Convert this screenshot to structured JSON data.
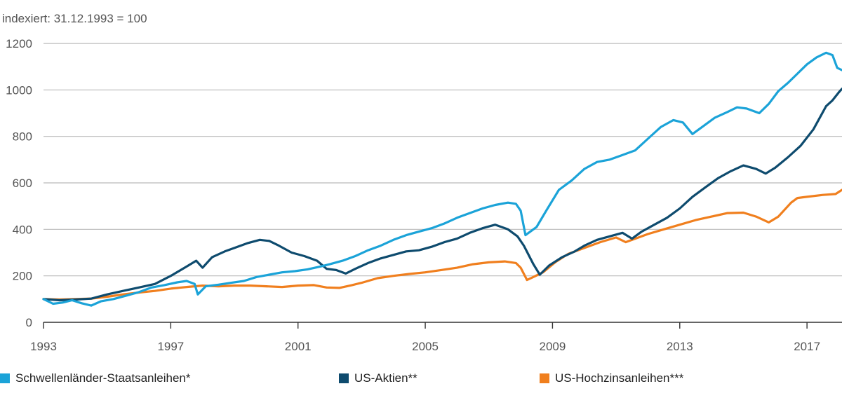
{
  "chart_data": {
    "type": "line",
    "subtitle": "indexiert: 31.12.1993 = 100",
    "xlim": [
      1993,
      2018.1
    ],
    "ylim": [
      0,
      1200
    ],
    "x_ticks": [
      "1993",
      "1997",
      "2001",
      "2005",
      "2009",
      "2013",
      "2017"
    ],
    "y_ticks": [
      "0",
      "200",
      "400",
      "600",
      "800",
      "1000",
      "1200"
    ],
    "grid": true,
    "legend_position": "bottom",
    "series": [
      {
        "name": "Schwellenländer-Staatsanleihen*",
        "color": "#1ba3d8",
        "points": [
          [
            1993.0,
            100
          ],
          [
            1993.3,
            80
          ],
          [
            1993.6,
            85
          ],
          [
            1993.9,
            95
          ],
          [
            1994.2,
            82
          ],
          [
            1994.5,
            72
          ],
          [
            1994.8,
            90
          ],
          [
            1995.2,
            100
          ],
          [
            1995.6,
            115
          ],
          [
            1996.0,
            130
          ],
          [
            1996.4,
            150
          ],
          [
            1996.8,
            160
          ],
          [
            1997.2,
            172
          ],
          [
            1997.5,
            178
          ],
          [
            1997.75,
            165
          ],
          [
            1997.85,
            120
          ],
          [
            1998.1,
            155
          ],
          [
            1998.5,
            162
          ],
          [
            1998.9,
            170
          ],
          [
            1999.3,
            178
          ],
          [
            1999.7,
            195
          ],
          [
            2000.1,
            205
          ],
          [
            2000.5,
            215
          ],
          [
            2000.9,
            220
          ],
          [
            2001.3,
            228
          ],
          [
            2001.7,
            240
          ],
          [
            2002.0,
            250
          ],
          [
            2002.4,
            265
          ],
          [
            2002.8,
            285
          ],
          [
            2003.2,
            310
          ],
          [
            2003.6,
            330
          ],
          [
            2004.0,
            355
          ],
          [
            2004.4,
            375
          ],
          [
            2004.8,
            390
          ],
          [
            2005.2,
            405
          ],
          [
            2005.6,
            425
          ],
          [
            2006.0,
            450
          ],
          [
            2006.4,
            470
          ],
          [
            2006.8,
            490
          ],
          [
            2007.2,
            505
          ],
          [
            2007.6,
            515
          ],
          [
            2007.85,
            510
          ],
          [
            2008.0,
            480
          ],
          [
            2008.15,
            375
          ],
          [
            2008.5,
            410
          ],
          [
            2008.8,
            480
          ],
          [
            2009.2,
            570
          ],
          [
            2009.6,
            610
          ],
          [
            2010.0,
            660
          ],
          [
            2010.4,
            690
          ],
          [
            2010.8,
            700
          ],
          [
            2011.2,
            720
          ],
          [
            2011.6,
            740
          ],
          [
            2012.0,
            790
          ],
          [
            2012.4,
            840
          ],
          [
            2012.8,
            870
          ],
          [
            2013.1,
            860
          ],
          [
            2013.4,
            810
          ],
          [
            2013.8,
            850
          ],
          [
            2014.1,
            880
          ],
          [
            2014.5,
            905
          ],
          [
            2014.8,
            925
          ],
          [
            2015.1,
            920
          ],
          [
            2015.5,
            900
          ],
          [
            2015.8,
            940
          ],
          [
            2016.1,
            995
          ],
          [
            2016.4,
            1030
          ],
          [
            2016.7,
            1070
          ],
          [
            2017.0,
            1110
          ],
          [
            2017.3,
            1140
          ],
          [
            2017.6,
            1160
          ],
          [
            2017.8,
            1150
          ],
          [
            2017.95,
            1095
          ],
          [
            2018.1,
            1085
          ]
        ]
      },
      {
        "name": "US-Aktien**",
        "color": "#0e4b6e",
        "points": [
          [
            1993.0,
            100
          ],
          [
            1993.5,
            95
          ],
          [
            1994.0,
            98
          ],
          [
            1994.5,
            102
          ],
          [
            1995.0,
            120
          ],
          [
            1995.5,
            135
          ],
          [
            1996.0,
            150
          ],
          [
            1996.5,
            165
          ],
          [
            1997.0,
            200
          ],
          [
            1997.5,
            240
          ],
          [
            1997.8,
            265
          ],
          [
            1998.0,
            235
          ],
          [
            1998.3,
            280
          ],
          [
            1998.7,
            305
          ],
          [
            1999.0,
            320
          ],
          [
            1999.4,
            340
          ],
          [
            1999.8,
            355
          ],
          [
            2000.1,
            350
          ],
          [
            2000.4,
            330
          ],
          [
            2000.8,
            300
          ],
          [
            2001.2,
            285
          ],
          [
            2001.6,
            265
          ],
          [
            2001.9,
            230
          ],
          [
            2002.2,
            225
          ],
          [
            2002.5,
            210
          ],
          [
            2002.8,
            230
          ],
          [
            2003.2,
            255
          ],
          [
            2003.6,
            275
          ],
          [
            2004.0,
            290
          ],
          [
            2004.4,
            305
          ],
          [
            2004.8,
            310
          ],
          [
            2005.2,
            325
          ],
          [
            2005.6,
            345
          ],
          [
            2006.0,
            360
          ],
          [
            2006.4,
            385
          ],
          [
            2006.8,
            405
          ],
          [
            2007.2,
            420
          ],
          [
            2007.6,
            400
          ],
          [
            2007.9,
            370
          ],
          [
            2008.1,
            330
          ],
          [
            2008.4,
            250
          ],
          [
            2008.6,
            205
          ],
          [
            2008.9,
            245
          ],
          [
            2009.3,
            280
          ],
          [
            2009.7,
            305
          ],
          [
            2010.0,
            330
          ],
          [
            2010.4,
            355
          ],
          [
            2010.8,
            370
          ],
          [
            2011.2,
            385
          ],
          [
            2011.5,
            360
          ],
          [
            2011.8,
            390
          ],
          [
            2012.2,
            420
          ],
          [
            2012.6,
            450
          ],
          [
            2013.0,
            490
          ],
          [
            2013.4,
            540
          ],
          [
            2013.8,
            580
          ],
          [
            2014.2,
            620
          ],
          [
            2014.6,
            650
          ],
          [
            2015.0,
            675
          ],
          [
            2015.4,
            660
          ],
          [
            2015.7,
            640
          ],
          [
            2016.0,
            665
          ],
          [
            2016.4,
            710
          ],
          [
            2016.8,
            760
          ],
          [
            2017.2,
            830
          ],
          [
            2017.6,
            930
          ],
          [
            2017.8,
            955
          ],
          [
            2018.0,
            990
          ],
          [
            2018.1,
            1005
          ]
        ]
      },
      {
        "name": "US-Hochzinsanleihen***",
        "color": "#f07f1e",
        "points": [
          [
            1993.0,
            100
          ],
          [
            1993.5,
            98
          ],
          [
            1994.0,
            100
          ],
          [
            1994.5,
            102
          ],
          [
            1995.0,
            110
          ],
          [
            1995.5,
            120
          ],
          [
            1996.0,
            128
          ],
          [
            1996.5,
            135
          ],
          [
            1997.0,
            145
          ],
          [
            1997.5,
            152
          ],
          [
            1998.0,
            158
          ],
          [
            1998.5,
            155
          ],
          [
            1999.0,
            158
          ],
          [
            1999.5,
            158
          ],
          [
            2000.0,
            155
          ],
          [
            2000.5,
            152
          ],
          [
            2001.0,
            158
          ],
          [
            2001.5,
            160
          ],
          [
            2001.9,
            150
          ],
          [
            2002.3,
            148
          ],
          [
            2002.7,
            160
          ],
          [
            2003.0,
            170
          ],
          [
            2003.5,
            190
          ],
          [
            2004.0,
            200
          ],
          [
            2004.5,
            208
          ],
          [
            2005.0,
            215
          ],
          [
            2005.5,
            225
          ],
          [
            2006.0,
            235
          ],
          [
            2006.5,
            250
          ],
          [
            2007.0,
            258
          ],
          [
            2007.5,
            262
          ],
          [
            2007.85,
            255
          ],
          [
            2008.0,
            235
          ],
          [
            2008.2,
            182
          ],
          [
            2008.4,
            195
          ],
          [
            2008.7,
            215
          ],
          [
            2009.1,
            260
          ],
          [
            2009.5,
            295
          ],
          [
            2010.0,
            320
          ],
          [
            2010.5,
            345
          ],
          [
            2011.0,
            365
          ],
          [
            2011.3,
            345
          ],
          [
            2011.6,
            360
          ],
          [
            2012.0,
            380
          ],
          [
            2012.5,
            400
          ],
          [
            2013.0,
            420
          ],
          [
            2013.5,
            440
          ],
          [
            2014.0,
            455
          ],
          [
            2014.5,
            470
          ],
          [
            2015.0,
            472
          ],
          [
            2015.4,
            455
          ],
          [
            2015.8,
            430
          ],
          [
            2016.1,
            455
          ],
          [
            2016.5,
            515
          ],
          [
            2016.7,
            535
          ],
          [
            2017.0,
            540
          ],
          [
            2017.5,
            548
          ],
          [
            2017.9,
            552
          ],
          [
            2018.1,
            570
          ]
        ]
      }
    ]
  }
}
